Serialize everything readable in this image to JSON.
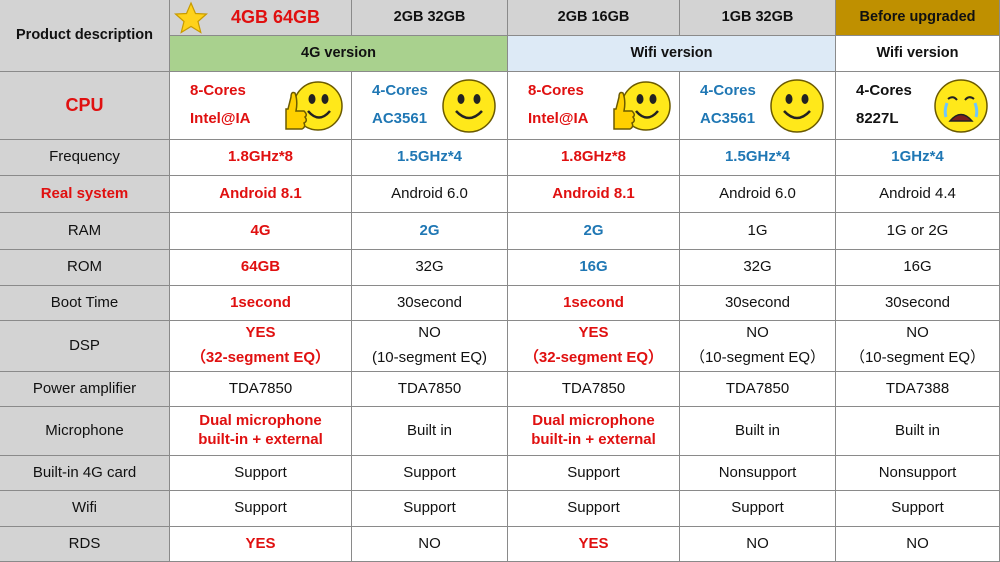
{
  "header": {
    "product_description": "Product description",
    "model_titles": [
      "4GB 64GB",
      "2GB 32GB",
      "2GB 16GB",
      "1GB 32GB",
      "Before upgraded"
    ],
    "versions": [
      "4G version",
      "Wifi version",
      "Wifi version"
    ]
  },
  "colors": {
    "label_bg": "#d3d3d3",
    "green_bg": "#a9d18e",
    "lightblue_bg": "#ddeaf6",
    "gold_bg": "#bf9000",
    "red_text": "#e01010",
    "blue_text": "#1f77b4",
    "grid": "#8a8a8a"
  },
  "rows": {
    "cpu": {
      "label": "CPU",
      "values": [
        {
          "line1": "8-Cores",
          "line2": "Intel@IA",
          "face": "thumbs-up-smiley"
        },
        {
          "line1": "4-Cores",
          "line2": "AC3561",
          "face": "smiley"
        },
        {
          "line1": "8-Cores",
          "line2": "Intel@IA",
          "face": "thumbs-up-smiley"
        },
        {
          "line1": "4-Cores",
          "line2": "AC3561",
          "face": "smiley"
        },
        {
          "line1": "4-Cores",
          "line2": "8227L",
          "face": "crying"
        }
      ]
    },
    "frequency": {
      "label": "Frequency",
      "values": [
        "1.8GHz*8",
        "1.5GHz*4",
        "1.8GHz*8",
        "1.5GHz*4",
        "1GHz*4"
      ]
    },
    "real_system": {
      "label": "Real system",
      "values": [
        "Android 8.1",
        "Android 6.0",
        "Android 8.1",
        "Android 6.0",
        "Android 4.4"
      ]
    },
    "ram": {
      "label": "RAM",
      "values": [
        "4G",
        "2G",
        "2G",
        "1G",
        "1G or 2G"
      ]
    },
    "rom": {
      "label": "ROM",
      "values": [
        "64GB",
        "32G",
        "16G",
        "32G",
        "16G"
      ]
    },
    "boot_time": {
      "label": "Boot Time",
      "values": [
        "1second",
        "30second",
        "1second",
        "30second",
        "30second"
      ]
    },
    "dsp": {
      "label": "DSP",
      "values": [
        {
          "line1": "YES",
          "line2": "（32-segment EQ）"
        },
        {
          "line1": "NO",
          "line2": "(10-segment EQ)"
        },
        {
          "line1": "YES",
          "line2": "（32-segment EQ）"
        },
        {
          "line1": "NO",
          "line2": "（10-segment EQ）"
        },
        {
          "line1": "NO",
          "line2": "（10-segment EQ）"
        }
      ]
    },
    "power_amplifier": {
      "label": "Power amplifier",
      "values": [
        "TDA7850",
        "TDA7850",
        "TDA7850",
        "TDA7850",
        "TDA7388"
      ]
    },
    "microphone": {
      "label": "Microphone",
      "values": [
        {
          "line1": "Dual microphone",
          "line2": "built-in + external"
        },
        {
          "line1": "Built in",
          "line2": ""
        },
        {
          "line1": "Dual microphone",
          "line2": "built-in + external"
        },
        {
          "line1": "Built in",
          "line2": ""
        },
        {
          "line1": "Built in",
          "line2": ""
        }
      ]
    },
    "builtin_4g_card": {
      "label": "Built-in 4G card",
      "values": [
        "Support",
        "Support",
        "Support",
        "Nonsupport",
        "Nonsupport"
      ]
    },
    "wifi": {
      "label": "Wifi",
      "values": [
        "Support",
        "Support",
        "Support",
        "Support",
        "Support"
      ]
    },
    "rds": {
      "label": "RDS",
      "values": [
        "YES",
        "NO",
        "YES",
        "NO",
        "NO"
      ]
    }
  }
}
